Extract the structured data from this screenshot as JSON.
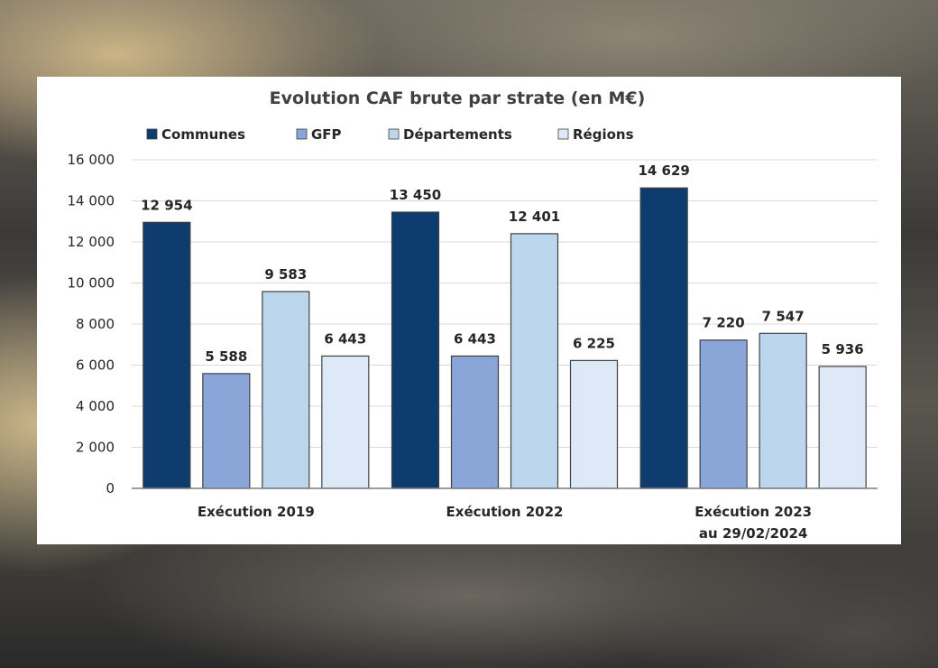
{
  "chart_data": {
    "type": "bar",
    "title": "Evolution CAF brute par strate (en M€)",
    "categories": [
      [
        "Exécution 2019"
      ],
      [
        "Exécution 2022"
      ],
      [
        "Exécution 2023",
        "au 29/02/2024"
      ]
    ],
    "series": [
      {
        "name": "Communes",
        "color": "#0e3c6f",
        "values": [
          12954,
          13450,
          14629
        ],
        "labels": [
          "12 954",
          "13 450",
          "14 629"
        ]
      },
      {
        "name": "GFP",
        "color": "#8aa6d9",
        "values": [
          5588,
          6443,
          7220
        ],
        "labels": [
          "5 588",
          "6 443",
          "7 220"
        ]
      },
      {
        "name": "Départements",
        "color": "#bcd6ee",
        "values": [
          9583,
          12401,
          7547
        ],
        "labels": [
          "9 583",
          "12 401",
          "7 547"
        ]
      },
      {
        "name": "Régions",
        "color": "#dde9f7",
        "values": [
          6443,
          6225,
          5936
        ],
        "labels": [
          "6 443",
          "6 225",
          "5 936"
        ]
      }
    ],
    "ylim": [
      0,
      16000
    ],
    "yticks": [
      {
        "value": 0,
        "label": "0"
      },
      {
        "value": 2000,
        "label": "2 000"
      },
      {
        "value": 4000,
        "label": "4 000"
      },
      {
        "value": 6000,
        "label": "6 000"
      },
      {
        "value": 8000,
        "label": "8 000"
      },
      {
        "value": 10000,
        "label": "10 000"
      },
      {
        "value": 12000,
        "label": "12 000"
      },
      {
        "value": 14000,
        "label": "14 000"
      },
      {
        "value": 16000,
        "label": "16 000"
      }
    ],
    "grid": true,
    "legend_position": "top"
  }
}
